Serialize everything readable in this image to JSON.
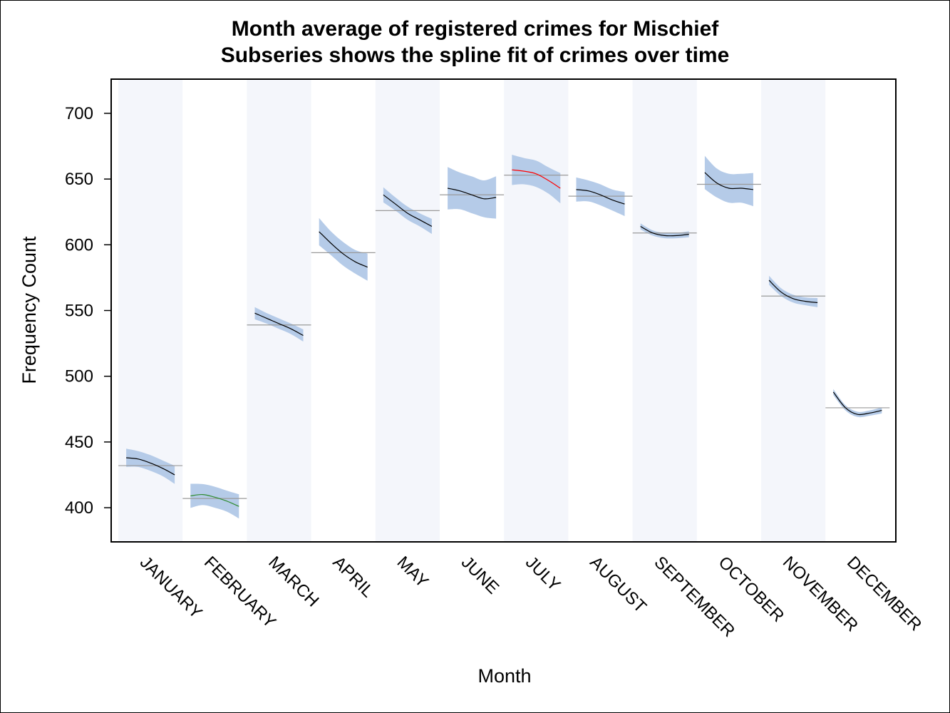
{
  "chart_data": {
    "type": "line",
    "title": "Month average of registered crimes for Mischief",
    "subtitle": "Subseries shows the spline fit of crimes over time",
    "xlabel": "Month",
    "ylabel": "Frequency Count",
    "ylim": [
      374,
      726
    ],
    "yticks": [
      400,
      450,
      500,
      550,
      600,
      650,
      700
    ],
    "grid": false,
    "categories": [
      "JANUARY",
      "FEBRUARY",
      "MARCH",
      "APRIL",
      "MAY",
      "JUNE",
      "JULY",
      "AUGUST",
      "SEPTEMBER",
      "OCTOBER",
      "NOVEMBER",
      "DECEMBER"
    ],
    "month_average": [
      432,
      407,
      539,
      594,
      626,
      638,
      653,
      637,
      609,
      646,
      561,
      476
    ],
    "series": [
      {
        "month": "JANUARY",
        "line_color": "#000000",
        "spline": [
          438,
          437,
          434,
          430,
          425
        ],
        "band_halfwidth": 6
      },
      {
        "month": "FEBRUARY",
        "line_color": "#2e8b2e",
        "spline": [
          409,
          410,
          408,
          405,
          401
        ],
        "band_halfwidth": 8
      },
      {
        "month": "MARCH",
        "line_color": "#000000",
        "spline": [
          548,
          544,
          540,
          536,
          531
        ],
        "band_halfwidth": 4
      },
      {
        "month": "APRIL",
        "line_color": "#000000",
        "spline": [
          610,
          601,
          593,
          587,
          583
        ],
        "band_halfwidth": 9
      },
      {
        "month": "MAY",
        "line_color": "#000000",
        "spline": [
          638,
          631,
          624,
          619,
          614
        ],
        "band_halfwidth": 5
      },
      {
        "month": "JUNE",
        "line_color": "#000000",
        "spline": [
          643,
          641,
          638,
          635,
          636
        ],
        "band_halfwidth": 14
      },
      {
        "month": "JULY",
        "line_color": "#ff0000",
        "spline": [
          657,
          656,
          654,
          649,
          643
        ],
        "band_halfwidth": 10
      },
      {
        "month": "AUGUST",
        "line_color": "#000000",
        "spline": [
          642,
          641,
          638,
          634,
          631
        ],
        "band_halfwidth": 8
      },
      {
        "month": "SEPTEMBER",
        "line_color": "#000000",
        "spline": [
          614,
          609,
          607,
          607,
          608
        ],
        "band_halfwidth": 2
      },
      {
        "month": "OCTOBER",
        "line_color": "#000000",
        "spline": [
          655,
          647,
          643,
          643,
          642
        ],
        "band_halfwidth": 11
      },
      {
        "month": "NOVEMBER",
        "line_color": "#000000",
        "spline": [
          573,
          564,
          559,
          557,
          556
        ],
        "band_halfwidth": 3
      },
      {
        "month": "DECEMBER",
        "line_color": "#000000",
        "spline": [
          488,
          476,
          471,
          472,
          474
        ],
        "band_halfwidth": 2
      }
    ],
    "colors": {
      "band": "#b5cbe8",
      "stripe": "#f4f6fb",
      "mean_line": "#9a9a9a"
    }
  }
}
